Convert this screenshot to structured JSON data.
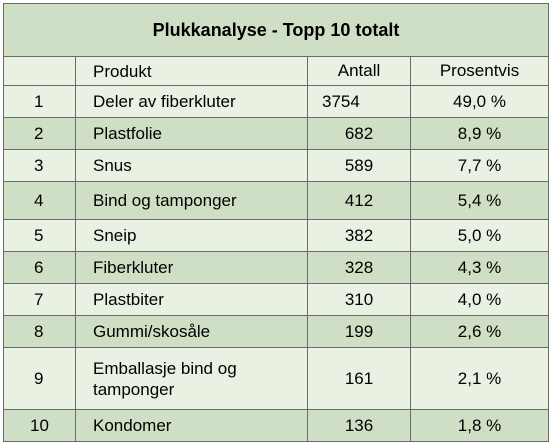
{
  "title": "Plukkanalyse - Topp 10 totalt",
  "headers": {
    "rank": "",
    "product": "Produkt",
    "count": "Antall",
    "percent": "Prosentvis"
  },
  "rows": [
    {
      "rank": "1",
      "product": "Deler av fiberkluter",
      "count": "3754",
      "percent": "49,0 %"
    },
    {
      "rank": "2",
      "product": "Plastfolie",
      "count": "682",
      "percent": "8,9 %"
    },
    {
      "rank": "3",
      "product": "Snus",
      "count": "589",
      "percent": "7,7 %"
    },
    {
      "rank": "4",
      "product": "Bind og tamponger",
      "count": "412",
      "percent": "5,4 %"
    },
    {
      "rank": "5",
      "product": "Sneip",
      "count": "382",
      "percent": "5,0 %"
    },
    {
      "rank": "6",
      "product": "Fiberkluter",
      "count": "328",
      "percent": "4,3 %"
    },
    {
      "rank": "7",
      "product": "Plastbiter",
      "count": "310",
      "percent": "4,0 %"
    },
    {
      "rank": "8",
      "product": "Gummi/skosåle",
      "count": "199",
      "percent": "2,6 %"
    },
    {
      "rank": "9",
      "product": "Emballasje bind og tamponger",
      "count": "161",
      "percent": "2,1 %"
    },
    {
      "rank": "10",
      "product": "Kondomer",
      "count": "136",
      "percent": "1,8 %"
    }
  ],
  "colors": {
    "dark_green": "#cfdfc5",
    "light_green": "#e8f1e2",
    "border": "#6b6b6b"
  }
}
